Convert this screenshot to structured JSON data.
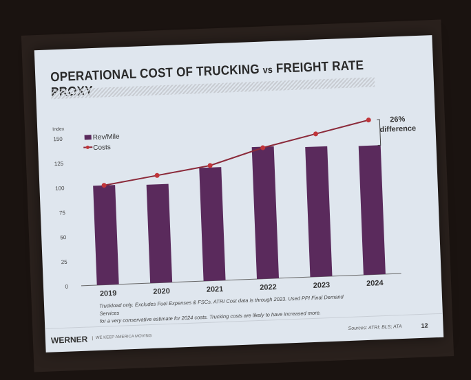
{
  "slide": {
    "title_part1": "OPERATIONAL COST OF TRUCKING ",
    "title_vs": "vs",
    "title_part2": " FREIGHT RATE PROXY",
    "note_line1": "Truckload only. Excludes Fuel Expenses & FSCs. ATRI Cost data is through 2023. Used PPI Final Demand Services",
    "note_line2": "for a very conservative estimate for 2024 costs. Trucking costs are likely to have increased more.",
    "logo": "WERNER",
    "tagline": "WE KEEP AMERICA MOVING",
    "sources": "Sources: ATRI; BLS; ATA",
    "page_number": "12"
  },
  "chart_data": {
    "type": "bar+line",
    "ylabel": "Index",
    "ylim": [
      0,
      150
    ],
    "yticks": [
      "0",
      "25",
      "50",
      "75",
      "100",
      "125",
      "150"
    ],
    "categories": [
      "2019",
      "2020",
      "2021",
      "2022",
      "2023",
      "2024"
    ],
    "series": [
      {
        "name": "Rev/Mile",
        "type": "bar",
        "color": "#5a2a5c",
        "values": [
          101,
          100,
          115,
          134,
          132,
          131
        ]
      },
      {
        "name": "Costs",
        "type": "line",
        "color": "#8b2a3a",
        "marker_color": "#c0353a",
        "values": [
          101,
          109,
          117,
          133,
          145,
          157
        ]
      }
    ],
    "annotation": {
      "value": "26%",
      "label": "difference"
    },
    "legend": "top-left",
    "grid": false
  }
}
